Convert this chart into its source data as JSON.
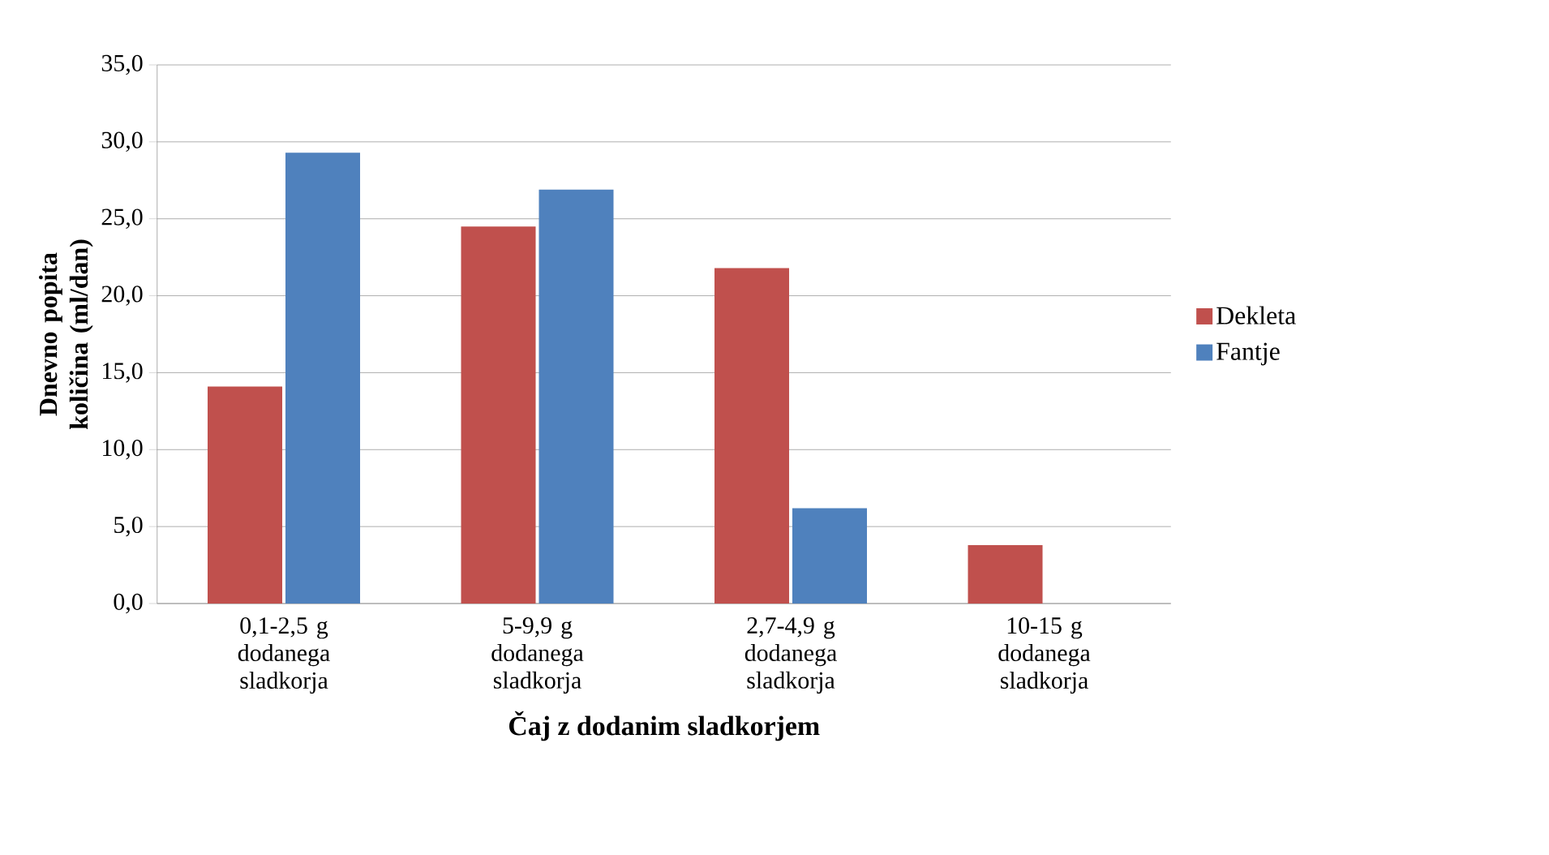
{
  "chart_data": {
    "type": "bar",
    "xlabel": "Čaj z dodanim sladkorjem",
    "ylabel": "Dnevno popita količina (ml/dan)",
    "categories": [
      "0,1-2,5 g dodanega sladkorja",
      "5-9,9 g dodanega sladkorja",
      "2,7-4,9 g dodanega sladkorja",
      "10-15 g dodanega sladkorja"
    ],
    "series": [
      {
        "name": "Dekleta",
        "color": "#c0504d",
        "values": [
          14.1,
          24.5,
          21.8,
          3.8
        ]
      },
      {
        "name": "Fantje",
        "color": "#4f81bd",
        "values": [
          29.3,
          26.9,
          6.2,
          0
        ]
      }
    ],
    "ylim": [
      0,
      35
    ],
    "yticks": [
      {
        "value": 0,
        "label": "0,0"
      },
      {
        "value": 5,
        "label": "5,0"
      },
      {
        "value": 10,
        "label": "10,0"
      },
      {
        "value": 15,
        "label": "15,0"
      },
      {
        "value": 20,
        "label": "20,0"
      },
      {
        "value": 25,
        "label": "25,0"
      },
      {
        "value": 30,
        "label": "30,0"
      },
      {
        "value": 35,
        "label": "35,0"
      }
    ],
    "grid": "y",
    "legend": "right"
  }
}
